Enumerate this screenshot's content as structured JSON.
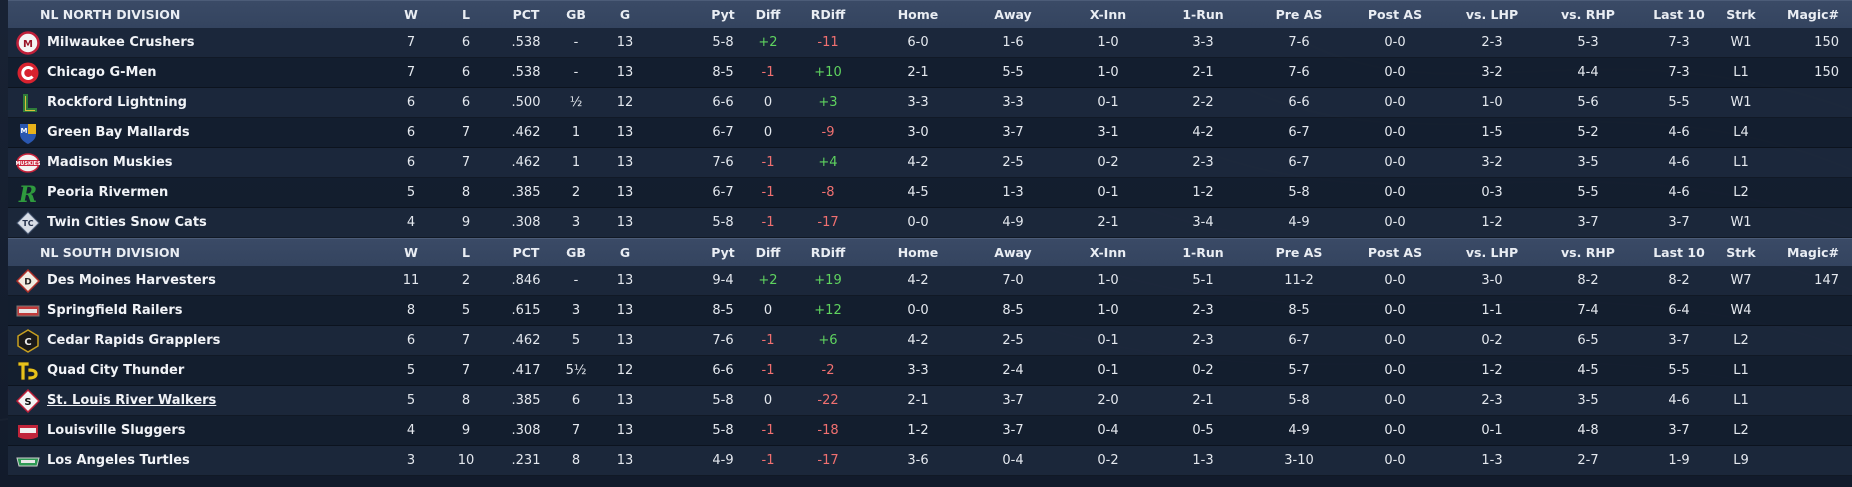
{
  "colors": {
    "header_bg": "#3a4a66",
    "row_bg": "#1c283c",
    "positive": "#5fd35f",
    "negative": "#f07070",
    "text": "#e4e8ee"
  },
  "columns": [
    "W",
    "L",
    "PCT",
    "GB",
    "G",
    "Pyt",
    "Diff",
    "RDiff",
    "Home",
    "Away",
    "X-Inn",
    "1-Run",
    "Pre AS",
    "Post AS",
    "vs. LHP",
    "vs. RHP",
    "Last 10",
    "Strk",
    "Magic#"
  ],
  "divisions": [
    {
      "name": "NL NORTH DIVISION",
      "teams": [
        {
          "name": "Milwaukee Crushers",
          "logo": "milwaukee-crushers-logo",
          "W": "7",
          "L": "6",
          "PCT": ".538",
          "GB": "-",
          "G": "13",
          "Pyt": "5-8",
          "Diff": "+2",
          "RDiff": "-11",
          "Home": "6-0",
          "Away": "1-6",
          "XInn": "1-0",
          "OneRun": "3-3",
          "PreAS": "7-6",
          "PostAS": "0-0",
          "vsLHP": "2-3",
          "vsRHP": "5-3",
          "Last10": "7-3",
          "Strk": "W1",
          "Magic": "150"
        },
        {
          "name": "Chicago G-Men",
          "logo": "chicago-g-men-logo",
          "W": "7",
          "L": "6",
          "PCT": ".538",
          "GB": "-",
          "G": "13",
          "Pyt": "8-5",
          "Diff": "-1",
          "RDiff": "+10",
          "Home": "2-1",
          "Away": "5-5",
          "XInn": "1-0",
          "OneRun": "2-1",
          "PreAS": "7-6",
          "PostAS": "0-0",
          "vsLHP": "3-2",
          "vsRHP": "4-4",
          "Last10": "7-3",
          "Strk": "L1",
          "Magic": "150"
        },
        {
          "name": "Rockford Lightning",
          "logo": "rockford-lightning-logo",
          "W": "6",
          "L": "6",
          "PCT": ".500",
          "GB": "½",
          "G": "12",
          "Pyt": "6-6",
          "Diff": "0",
          "RDiff": "+3",
          "Home": "3-3",
          "Away": "3-3",
          "XInn": "0-1",
          "OneRun": "2-2",
          "PreAS": "6-6",
          "PostAS": "0-0",
          "vsLHP": "1-0",
          "vsRHP": "5-6",
          "Last10": "5-5",
          "Strk": "W1",
          "Magic": ""
        },
        {
          "name": "Green Bay  Mallards",
          "logo": "green-bay-mallards-logo",
          "W": "6",
          "L": "7",
          "PCT": ".462",
          "GB": "1",
          "G": "13",
          "Pyt": "6-7",
          "Diff": "0",
          "RDiff": "-9",
          "Home": "3-0",
          "Away": "3-7",
          "XInn": "3-1",
          "OneRun": "4-2",
          "PreAS": "6-7",
          "PostAS": "0-0",
          "vsLHP": "1-5",
          "vsRHP": "5-2",
          "Last10": "4-6",
          "Strk": "L4",
          "Magic": ""
        },
        {
          "name": "Madison Muskies",
          "logo": "madison-muskies-logo",
          "W": "6",
          "L": "7",
          "PCT": ".462",
          "GB": "1",
          "G": "13",
          "Pyt": "7-6",
          "Diff": "-1",
          "RDiff": "+4",
          "Home": "4-2",
          "Away": "2-5",
          "XInn": "0-2",
          "OneRun": "2-3",
          "PreAS": "6-7",
          "PostAS": "0-0",
          "vsLHP": "3-2",
          "vsRHP": "3-5",
          "Last10": "4-6",
          "Strk": "L1",
          "Magic": ""
        },
        {
          "name": "Peoria Rivermen",
          "logo": "peoria-rivermen-logo",
          "W": "5",
          "L": "8",
          "PCT": ".385",
          "GB": "2",
          "G": "13",
          "Pyt": "6-7",
          "Diff": "-1",
          "RDiff": "-8",
          "Home": "4-5",
          "Away": "1-3",
          "XInn": "0-1",
          "OneRun": "1-2",
          "PreAS": "5-8",
          "PostAS": "0-0",
          "vsLHP": "0-3",
          "vsRHP": "5-5",
          "Last10": "4-6",
          "Strk": "L2",
          "Magic": ""
        },
        {
          "name": "Twin Cities Snow Cats",
          "logo": "twin-cities-snow-cats-logo",
          "W": "4",
          "L": "9",
          "PCT": ".308",
          "GB": "3",
          "G": "13",
          "Pyt": "5-8",
          "Diff": "-1",
          "RDiff": "-17",
          "Home": "0-0",
          "Away": "4-9",
          "XInn": "2-1",
          "OneRun": "3-4",
          "PreAS": "4-9",
          "PostAS": "0-0",
          "vsLHP": "1-2",
          "vsRHP": "3-7",
          "Last10": "3-7",
          "Strk": "W1",
          "Magic": ""
        }
      ]
    },
    {
      "name": "NL SOUTH DIVISION",
      "teams": [
        {
          "name": "Des Moines Harvesters",
          "logo": "des-moines-harvesters-logo",
          "W": "11",
          "L": "2",
          "PCT": ".846",
          "GB": "-",
          "G": "13",
          "Pyt": "9-4",
          "Diff": "+2",
          "RDiff": "+19",
          "Home": "4-2",
          "Away": "7-0",
          "XInn": "1-0",
          "OneRun": "5-1",
          "PreAS": "11-2",
          "PostAS": "0-0",
          "vsLHP": "3-0",
          "vsRHP": "8-2",
          "Last10": "8-2",
          "Strk": "W7",
          "Magic": "147"
        },
        {
          "name": "Springfield Railers",
          "logo": "springfield-railers-logo",
          "W": "8",
          "L": "5",
          "PCT": ".615",
          "GB": "3",
          "G": "13",
          "Pyt": "8-5",
          "Diff": "0",
          "RDiff": "+12",
          "Home": "0-0",
          "Away": "8-5",
          "XInn": "1-0",
          "OneRun": "2-3",
          "PreAS": "8-5",
          "PostAS": "0-0",
          "vsLHP": "1-1",
          "vsRHP": "7-4",
          "Last10": "6-4",
          "Strk": "W4",
          "Magic": ""
        },
        {
          "name": "Cedar Rapids Grapplers",
          "logo": "cedar-rapids-grapplers-logo",
          "W": "6",
          "L": "7",
          "PCT": ".462",
          "GB": "5",
          "G": "13",
          "Pyt": "7-6",
          "Diff": "-1",
          "RDiff": "+6",
          "Home": "4-2",
          "Away": "2-5",
          "XInn": "0-1",
          "OneRun": "2-3",
          "PreAS": "6-7",
          "PostAS": "0-0",
          "vsLHP": "0-2",
          "vsRHP": "6-5",
          "Last10": "3-7",
          "Strk": "L2",
          "Magic": ""
        },
        {
          "name": "Quad City Thunder",
          "logo": "quad-city-thunder-logo",
          "W": "5",
          "L": "7",
          "PCT": ".417",
          "GB": "5½",
          "G": "12",
          "Pyt": "6-6",
          "Diff": "-1",
          "RDiff": "-2",
          "Home": "3-3",
          "Away": "2-4",
          "XInn": "0-1",
          "OneRun": "0-2",
          "PreAS": "5-7",
          "PostAS": "0-0",
          "vsLHP": "1-2",
          "vsRHP": "4-5",
          "Last10": "5-5",
          "Strk": "L1",
          "Magic": ""
        },
        {
          "name": "St. Louis River Walkers",
          "logo": "st-louis-river-walkers-logo",
          "W": "5",
          "L": "8",
          "PCT": ".385",
          "GB": "6",
          "G": "13",
          "Pyt": "5-8",
          "Diff": "0",
          "RDiff": "-22",
          "Home": "2-1",
          "Away": "3-7",
          "XInn": "2-0",
          "OneRun": "2-1",
          "PreAS": "5-8",
          "PostAS": "0-0",
          "vsLHP": "2-3",
          "vsRHP": "3-5",
          "Last10": "4-6",
          "Strk": "L1",
          "Magic": "",
          "underlined": true
        },
        {
          "name": "Louisville Sluggers",
          "logo": "louisville-sluggers-logo",
          "W": "4",
          "L": "9",
          "PCT": ".308",
          "GB": "7",
          "G": "13",
          "Pyt": "5-8",
          "Diff": "-1",
          "RDiff": "-18",
          "Home": "1-2",
          "Away": "3-7",
          "XInn": "0-4",
          "OneRun": "0-5",
          "PreAS": "4-9",
          "PostAS": "0-0",
          "vsLHP": "0-1",
          "vsRHP": "4-8",
          "Last10": "3-7",
          "Strk": "L2",
          "Magic": ""
        },
        {
          "name": "Los Angeles Turtles",
          "logo": "los-angeles-turtles-logo",
          "W": "3",
          "L": "10",
          "PCT": ".231",
          "GB": "8",
          "G": "13",
          "Pyt": "4-9",
          "Diff": "-1",
          "RDiff": "-17",
          "Home": "3-6",
          "Away": "0-4",
          "XInn": "0-2",
          "OneRun": "1-3",
          "PreAS": "3-10",
          "PostAS": "0-0",
          "vsLHP": "1-3",
          "vsRHP": "2-7",
          "Last10": "1-9",
          "Strk": "L9",
          "Magic": ""
        }
      ]
    }
  ]
}
